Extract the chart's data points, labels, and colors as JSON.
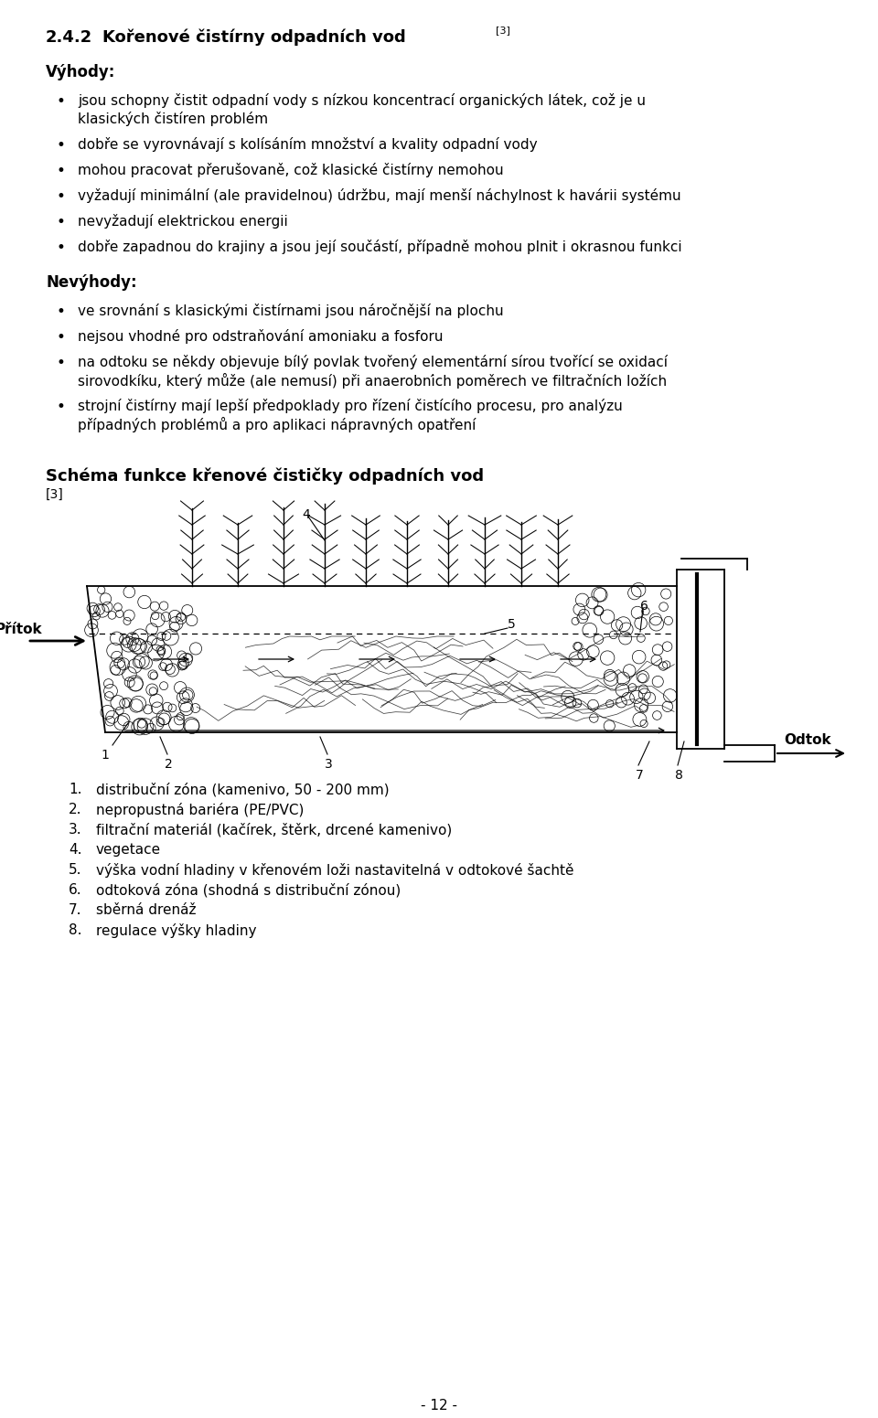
{
  "title_num": "2.4.2",
  "title_text": "Kořenové čistírny odpadních vod",
  "title_superscript": "[3]",
  "section1_header": "Výhody:",
  "section1_items": [
    "jsou schopny čistit odpadní vody s nízkou koncentrací organických látek, což je u klasických čistíren problém",
    "dobře se vyrovnávají s kolísáním množství a kvality odpadní vody",
    "mohou pracovat přerušovaně, což klasické čistírny nemohou",
    "vyžadují minimální (ale pravidelnou) údržbu, mají menší náchylnost k havárii systému",
    "nevyžadují elektrickou energii",
    "dobře zapadnou do krajiny a jsou její součástí, případně mohou plnit i okrasnou funkci"
  ],
  "section1_items_wrap": [
    true,
    false,
    false,
    false,
    false,
    false
  ],
  "section1_items_line2": [
    "klasických čistíren problém",
    "",
    "",
    "",
    "",
    ""
  ],
  "section2_header": "Nevýhody:",
  "section2_items": [
    "ve srovnání s klasickými čistírnami jsou náročnější na plochu",
    "nejsou vhodné pro odstraňování amoniaku a fosforu",
    "na odtoku se někdy objevuje bílý povlak tvořený elementární sírou tvořící se oxidací sirovodkíku, který může (ale nemusí) při anaerobních poměrech ve filtračních ložích",
    "strojní čistírny mají lepší předpoklady pro řízení čistícího procesu, pro analýzu případných problémů a pro aplikaci nápravných opatření"
  ],
  "schema_title": "Schéma funkce křenové čističky odpadních vod",
  "schema_ref": "[3]",
  "legend_items": [
    [
      "1.",
      "distribuční zóna (kamenivo, 50 - 200 mm)"
    ],
    [
      "2.",
      "nepropustná bariéra (PE/PVC)"
    ],
    [
      "3.",
      "filtrační materiál (kačírek, štěrk, drcené kamenivo)"
    ],
    [
      "4.",
      "vegetace"
    ],
    [
      "5.",
      "výška vodní hladiny v křenovém loži nastavitelná v odtokové šachtě"
    ],
    [
      "6.",
      "odtoková zóna (shodná s distribuční zónou)"
    ],
    [
      "7.",
      "sběrná drenáž"
    ],
    [
      "8.",
      "regulace výšky hladiny"
    ]
  ],
  "footer": "- 12 -",
  "bg_color": "#ffffff",
  "text_color": "#000000"
}
